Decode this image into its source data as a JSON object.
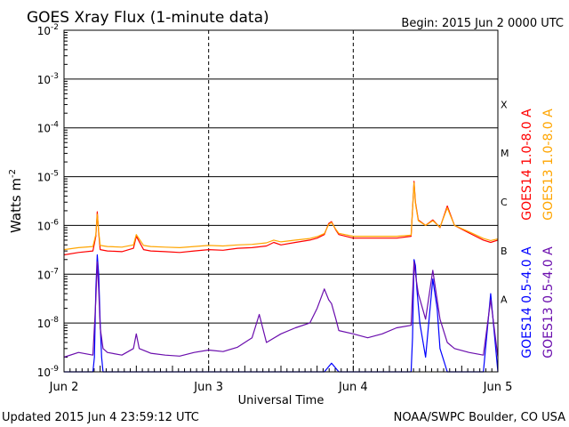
{
  "chart_data": {
    "type": "line",
    "title": "GOES Xray Flux (1-minute data)",
    "begin_label": "Begin:  2015 Jun 2 0000 UTC",
    "xlabel": "Universal Time",
    "ylabel": "Watts m",
    "ylabel_superscript": "-2",
    "y_scale": "log",
    "ylim": [
      1e-09,
      0.01
    ],
    "y_ticks": [
      {
        "base": "10",
        "exp": "-9",
        "value": 1e-09
      },
      {
        "base": "10",
        "exp": "-8",
        "value": 1e-08
      },
      {
        "base": "10",
        "exp": "-7",
        "value": 1e-07
      },
      {
        "base": "10",
        "exp": "-6",
        "value": 1e-06
      },
      {
        "base": "10",
        "exp": "-5",
        "value": 1e-05
      },
      {
        "base": "10",
        "exp": "-4",
        "value": 0.0001
      },
      {
        "base": "10",
        "exp": "-3",
        "value": 0.001
      },
      {
        "base": "10",
        "exp": "-2",
        "value": 0.01
      }
    ],
    "x_ticks": [
      {
        "label": "Jun 2",
        "day": 0
      },
      {
        "label": "Jun 3",
        "day": 1
      },
      {
        "label": "Jun 4",
        "day": 2
      },
      {
        "label": "Jun 5",
        "day": 3
      }
    ],
    "xlim_days": [
      0,
      3
    ],
    "flare_classes": [
      {
        "label": "A",
        "value": 1e-08
      },
      {
        "label": "B",
        "value": 1e-07
      },
      {
        "label": "C",
        "value": 1e-06
      },
      {
        "label": "M",
        "value": 1e-05
      },
      {
        "label": "X",
        "value": 0.0001
      }
    ],
    "grid": true,
    "legend_position": "right",
    "series": [
      {
        "name": "GOES14 1.0-8.0 A",
        "color": "#ff0000",
        "x": [
          0.0,
          0.1,
          0.2,
          0.22,
          0.23,
          0.24,
          0.25,
          0.3,
          0.4,
          0.48,
          0.5,
          0.55,
          0.6,
          0.7,
          0.8,
          0.9,
          1.0,
          1.1,
          1.2,
          1.3,
          1.4,
          1.45,
          1.5,
          1.6,
          1.7,
          1.75,
          1.8,
          1.83,
          1.85,
          1.88,
          1.9,
          2.0,
          2.1,
          2.2,
          2.3,
          2.4,
          2.42,
          2.43,
          2.45,
          2.5,
          2.55,
          2.6,
          2.65,
          2.7,
          2.8,
          2.9,
          2.95,
          3.0
        ],
        "y": [
          2.5e-07,
          2.8e-07,
          3e-07,
          6e-07,
          1.9e-06,
          7e-07,
          3.2e-07,
          3e-07,
          2.9e-07,
          3.4e-07,
          6e-07,
          3.2e-07,
          3e-07,
          2.9e-07,
          2.8e-07,
          3e-07,
          3.2e-07,
          3.1e-07,
          3.4e-07,
          3.5e-07,
          3.8e-07,
          4.5e-07,
          4e-07,
          4.5e-07,
          5e-07,
          5.5e-07,
          6.5e-07,
          1.1e-06,
          1.2e-06,
          8e-07,
          6.5e-07,
          5.5e-07,
          5.5e-07,
          5.5e-07,
          5.5e-07,
          6e-07,
          8e-06,
          3e-06,
          1.3e-06,
          1e-06,
          1.3e-06,
          9e-07,
          2.5e-06,
          1e-06,
          7e-07,
          5e-07,
          4.5e-07,
          5e-07
        ]
      },
      {
        "name": "GOES13 1.0-8.0 A",
        "color": "#ffa500",
        "x": [
          0.0,
          0.1,
          0.2,
          0.22,
          0.23,
          0.24,
          0.25,
          0.3,
          0.4,
          0.48,
          0.5,
          0.55,
          0.6,
          0.7,
          0.8,
          0.9,
          1.0,
          1.1,
          1.2,
          1.3,
          1.4,
          1.45,
          1.5,
          1.6,
          1.7,
          1.75,
          1.8,
          1.83,
          1.85,
          1.88,
          1.9,
          2.0,
          2.1,
          2.2,
          2.3,
          2.4,
          2.42,
          2.43,
          2.45,
          2.5,
          2.55,
          2.6,
          2.65,
          2.7,
          2.8,
          2.9,
          2.95,
          3.0
        ],
        "y": [
          3.2e-07,
          3.5e-07,
          3.7e-07,
          6.5e-07,
          1.7e-06,
          7.5e-07,
          3.9e-07,
          3.7e-07,
          3.6e-07,
          4e-07,
          6.5e-07,
          3.9e-07,
          3.7e-07,
          3.6e-07,
          3.5e-07,
          3.7e-07,
          3.9e-07,
          3.8e-07,
          4e-07,
          4.1e-07,
          4.4e-07,
          5e-07,
          4.6e-07,
          5e-07,
          5.4e-07,
          5.9e-07,
          6.8e-07,
          1.05e-06,
          1.15e-06,
          8.3e-07,
          6.9e-07,
          6e-07,
          6e-07,
          6e-07,
          6e-07,
          6.3e-07,
          7.5e-06,
          2.8e-06,
          1.25e-06,
          1e-06,
          1.25e-06,
          9.2e-07,
          2.3e-06,
          1e-06,
          7.4e-07,
          5.4e-07,
          4.9e-07,
          5.3e-07
        ]
      },
      {
        "name": "GOES14 0.5-4.0 A",
        "color": "#0000ff",
        "x": [
          0.0,
          0.2,
          0.21,
          0.22,
          0.23,
          0.24,
          0.25,
          0.26,
          0.27,
          0.3,
          0.5,
          1.0,
          1.5,
          1.8,
          1.85,
          1.9,
          2.0,
          2.2,
          2.4,
          2.41,
          2.42,
          2.43,
          2.44,
          2.46,
          2.5,
          2.55,
          2.58,
          2.6,
          2.65,
          2.7,
          2.8,
          2.9,
          2.95,
          3.0
        ],
        "y": [
          1e-09,
          1e-09,
          2e-09,
          5e-08,
          2.5e-07,
          1e-07,
          1e-08,
          2e-09,
          1e-09,
          1e-09,
          1e-09,
          1e-09,
          1e-09,
          1e-09,
          1.5e-09,
          1e-09,
          1e-09,
          1e-09,
          1e-09,
          5e-09,
          2e-07,
          1.5e-07,
          5e-08,
          1e-08,
          2e-09,
          8e-08,
          2e-08,
          3e-09,
          1e-09,
          1e-09,
          1e-09,
          1e-09,
          4e-08,
          1e-09
        ]
      },
      {
        "name": "GOES13 0.5-4.0 A",
        "color": "#6a0dad",
        "x": [
          0.0,
          0.1,
          0.2,
          0.22,
          0.23,
          0.24,
          0.25,
          0.27,
          0.3,
          0.4,
          0.48,
          0.5,
          0.52,
          0.6,
          0.7,
          0.8,
          0.9,
          1.0,
          1.1,
          1.2,
          1.3,
          1.35,
          1.4,
          1.5,
          1.6,
          1.7,
          1.75,
          1.8,
          1.83,
          1.85,
          1.88,
          1.9,
          2.0,
          2.1,
          2.2,
          2.3,
          2.4,
          2.42,
          2.43,
          2.45,
          2.5,
          2.55,
          2.58,
          2.6,
          2.65,
          2.7,
          2.8,
          2.9,
          2.95,
          3.0
        ],
        "y": [
          2e-09,
          2.5e-09,
          2.2e-09,
          3e-08,
          1.8e-07,
          5e-08,
          8e-09,
          3e-09,
          2.5e-09,
          2.2e-09,
          3e-09,
          6e-09,
          3e-09,
          2.4e-09,
          2.2e-09,
          2.1e-09,
          2.5e-09,
          2.8e-09,
          2.6e-09,
          3.2e-09,
          5e-09,
          1.5e-08,
          4e-09,
          6e-09,
          8e-09,
          1e-08,
          2e-08,
          5e-08,
          3e-08,
          2.5e-08,
          1.2e-08,
          7e-09,
          6e-09,
          5e-09,
          6e-09,
          8e-09,
          9e-09,
          1.8e-07,
          1e-07,
          4e-08,
          1.2e-08,
          1.2e-07,
          3e-08,
          1.2e-08,
          4e-09,
          3e-09,
          2.5e-09,
          2.2e-09,
          3e-08,
          2e-09
        ]
      }
    ]
  },
  "footer": {
    "updated": "Updated 2015 Jun  4 23:59:12 UTC",
    "source": "NOAA/SWPC Boulder, CO USA"
  }
}
